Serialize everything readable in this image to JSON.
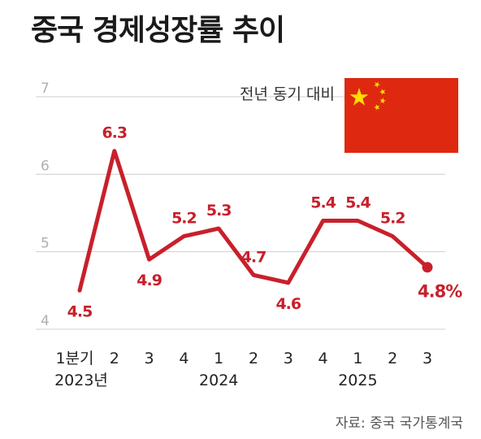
{
  "colors": {
    "series": "#c8202b",
    "grid": "#cfcfcf",
    "tick_text": "#b0b0b0",
    "flag_red": "#de2910",
    "flag_yellow": "#ffde00"
  },
  "header": {
    "title": "중국 경제성장률 추이"
  },
  "legend": {
    "label": "전년 동기 대비",
    "flag_icon": "china-flag-icon"
  },
  "source": {
    "text": "자료: 중국 국가통계국"
  },
  "chart_data": {
    "type": "line",
    "title": "중국 경제성장률 추이",
    "subtitle": "전년 동기 대비",
    "xlabel": "",
    "ylabel": "",
    "ylim": [
      4,
      7
    ],
    "yticks": [
      "4",
      "5",
      "6",
      "7"
    ],
    "grid": true,
    "categories": [
      "1분기",
      "2",
      "3",
      "4",
      "1",
      "2",
      "3",
      "4",
      "1",
      "2",
      "3"
    ],
    "year_labels": [
      {
        "index": 0,
        "text": "2023년"
      },
      {
        "index": 4,
        "text": "2024"
      },
      {
        "index": 8,
        "text": "2025"
      }
    ],
    "series": [
      {
        "values": [
          4.5,
          6.3,
          4.9,
          5.2,
          5.3,
          4.7,
          4.6,
          5.4,
          5.4,
          5.2,
          4.8
        ],
        "labels": [
          "4.5",
          "6.3",
          "4.9",
          "5.2",
          "5.3",
          "4.7",
          "4.6",
          "5.4",
          "5.4",
          "5.2",
          "4.8%"
        ]
      }
    ]
  }
}
